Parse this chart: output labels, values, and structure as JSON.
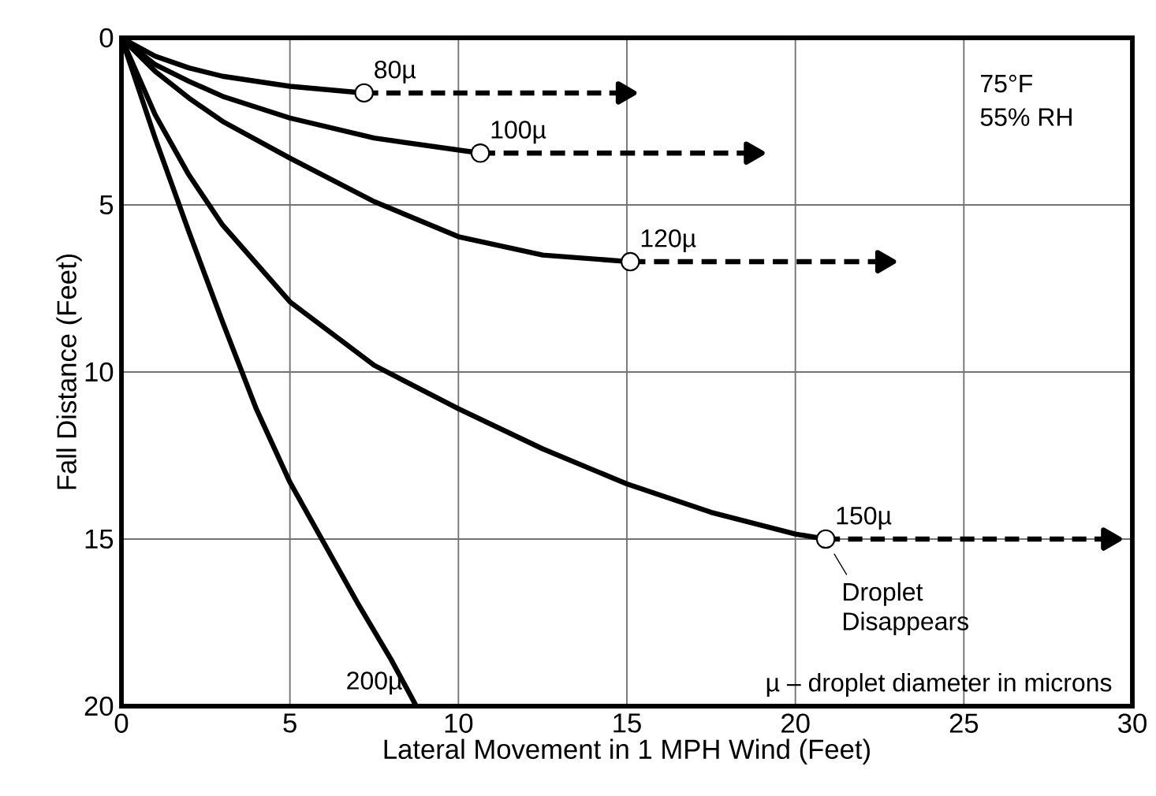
{
  "chart_data": {
    "type": "line",
    "xlabel": "Lateral Movement in 1 MPH Wind (Feet)",
    "ylabel": "Fall Distance (Feet)",
    "xlim": [
      0,
      30
    ],
    "ylim": [
      20,
      0
    ],
    "xticks": [
      0,
      5,
      10,
      15,
      20,
      25,
      30
    ],
    "yticks": [
      0,
      5,
      10,
      15,
      20
    ],
    "grid": true,
    "line_style": "solid",
    "series": [
      {
        "name": "80µ",
        "color": "#000000",
        "x": [
          0,
          1,
          2,
          3,
          5,
          7.2
        ],
        "values": [
          0,
          0.55,
          0.9,
          1.15,
          1.45,
          1.65
        ]
      },
      {
        "name": "100µ",
        "color": "#000000",
        "x": [
          0,
          1,
          2,
          3,
          5,
          7.5,
          10.65
        ],
        "values": [
          0,
          0.8,
          1.3,
          1.75,
          2.4,
          3.0,
          3.45
        ]
      },
      {
        "name": "120µ",
        "color": "#000000",
        "x": [
          0,
          1,
          2,
          3,
          5,
          7.5,
          10,
          12.5,
          15.1
        ],
        "values": [
          0,
          1.0,
          1.8,
          2.5,
          3.6,
          4.9,
          5.95,
          6.5,
          6.7
        ]
      },
      {
        "name": "150µ",
        "color": "#000000",
        "x": [
          0,
          1,
          2,
          3,
          5,
          7.5,
          10,
          12.5,
          15,
          17.5,
          20,
          20.9
        ],
        "values": [
          0,
          2.3,
          4.1,
          5.6,
          7.9,
          9.8,
          11.1,
          12.3,
          13.35,
          14.2,
          14.85,
          15
        ]
      },
      {
        "name": "200µ",
        "color": "#000000",
        "x": [
          0,
          1,
          2,
          3,
          4,
          5,
          6,
          7,
          8,
          8.75
        ],
        "values": [
          0,
          3.0,
          5.8,
          8.5,
          11.1,
          13.3,
          15.1,
          16.9,
          18.6,
          20
        ]
      },
      {
        "color": "#000000",
        "line_style": "dashed",
        "x": [
          7.2,
          14.9
        ],
        "values": [
          1.65,
          1.65
        ]
      },
      {
        "color": "#000000",
        "line_style": "dashed",
        "x": [
          10.65,
          18.7
        ],
        "values": [
          3.45,
          3.45
        ]
      },
      {
        "color": "#000000",
        "line_style": "dashed",
        "x": [
          15.1,
          22.6
        ],
        "values": [
          6.7,
          6.7
        ]
      },
      {
        "color": "#000000",
        "line_style": "dashed",
        "x": [
          20.9,
          29.3
        ],
        "values": [
          15,
          15
        ]
      },
      {
        "type": "scatter",
        "marker": "circle",
        "color": "#000000",
        "x": [
          7.2,
          10.65,
          15.1,
          20.9
        ],
        "values": [
          1.65,
          3.45,
          6.7,
          15
        ]
      }
    ],
    "annotations": [
      "75°F",
      "55% RH",
      {
        "text": "Droplet Disappears",
        "x": 20.9,
        "y": 15
      },
      "µ – droplet diameter in microns"
    ]
  }
}
